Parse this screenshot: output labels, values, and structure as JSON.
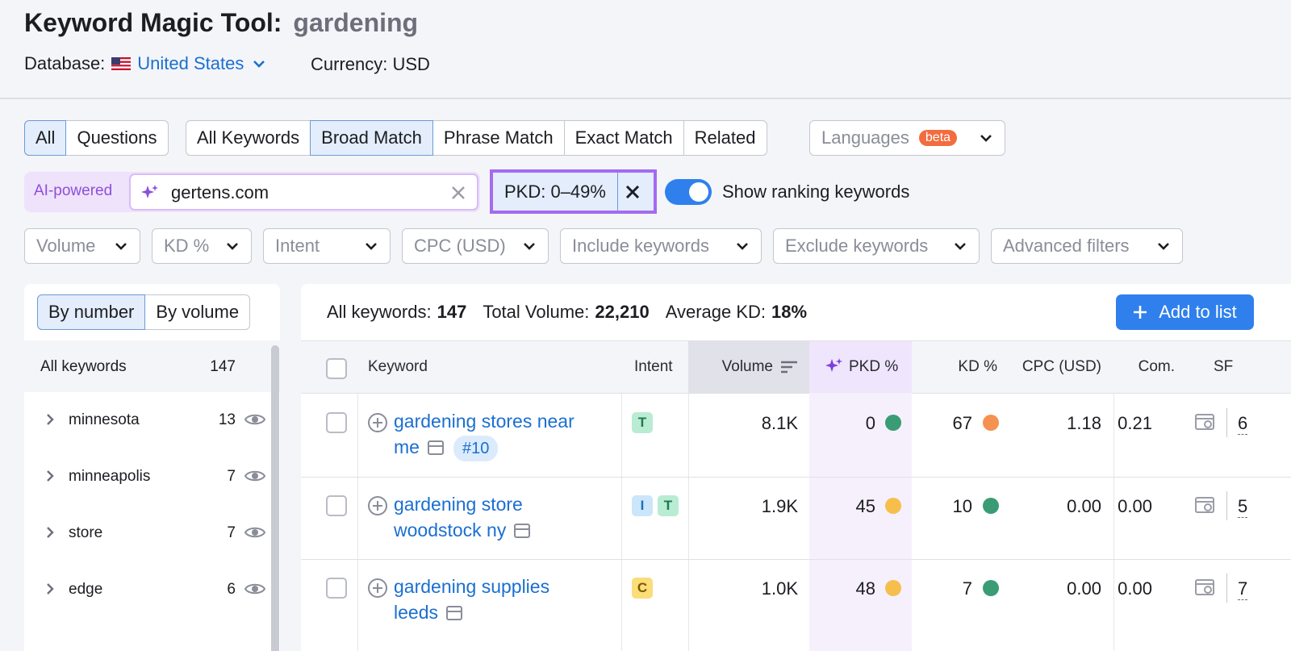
{
  "header": {
    "title": "Keyword Magic Tool:",
    "query": "gardening",
    "database_label": "Database:",
    "database": "United States",
    "currency": "Currency: USD"
  },
  "tabs": {
    "type": [
      "All",
      "Questions"
    ],
    "type_selected": 0,
    "match": [
      "All Keywords",
      "Broad Match",
      "Phrase Match",
      "Exact Match",
      "Related"
    ],
    "match_selected": 1,
    "languages": "Languages",
    "beta": "beta"
  },
  "ai": {
    "label": "AI-powered",
    "domain": "gertens.com",
    "pkd_filter": "PKD: 0–49%",
    "toggle": "Show ranking keywords"
  },
  "filters": [
    "Volume",
    "KD %",
    "Intent",
    "CPC (USD)",
    "Include keywords",
    "Exclude keywords",
    "Advanced filters"
  ],
  "sidebar": {
    "toggle": [
      "By number",
      "By volume"
    ],
    "all_label": "All keywords",
    "all_count": "147",
    "groups": [
      {
        "name": "minnesota",
        "count": "13"
      },
      {
        "name": "minneapolis",
        "count": "7"
      },
      {
        "name": "store",
        "count": "7"
      },
      {
        "name": "edge",
        "count": "6"
      }
    ]
  },
  "summary": {
    "all_label": "All keywords:",
    "all": "147",
    "volume_label": "Total Volume:",
    "volume": "22,210",
    "kd_label": "Average KD:",
    "kd": "18%",
    "add": "Add to list"
  },
  "table": {
    "columns": [
      "Keyword",
      "Intent",
      "Volume",
      "PKD %",
      "KD %",
      "CPC (USD)",
      "Com.",
      "SF"
    ],
    "rows": [
      {
        "keyword": "gardening stores near me",
        "rank": "#10",
        "intent": [
          {
            "label": "T",
            "bg": "#b9ecd3",
            "fg": "#1f7a50"
          }
        ],
        "volume": "8.1K",
        "pkd": "0",
        "pkd_color": "#3a9c74",
        "kd": "67",
        "kd_color": "#f5924f",
        "cpc": "1.18",
        "com": "0.21",
        "sf": "6"
      },
      {
        "keyword": "gardening store woodstock ny",
        "intent": [
          {
            "label": "I",
            "bg": "#cbe6fb",
            "fg": "#1d6fb8"
          },
          {
            "label": "T",
            "bg": "#b9ecd3",
            "fg": "#1f7a50"
          }
        ],
        "volume": "1.9K",
        "pkd": "45",
        "pkd_color": "#f6bf4c",
        "kd": "10",
        "kd_color": "#3a9c74",
        "cpc": "0.00",
        "com": "0.00",
        "sf": "5"
      },
      {
        "keyword": "gardening supplies leeds",
        "intent": [
          {
            "label": "C",
            "bg": "#fbdd79",
            "fg": "#7a5a00"
          }
        ],
        "volume": "1.0K",
        "pkd": "48",
        "pkd_color": "#f6bf4c",
        "kd": "7",
        "kd_color": "#3a9c74",
        "cpc": "0.00",
        "com": "0.00",
        "sf": "7"
      }
    ]
  }
}
